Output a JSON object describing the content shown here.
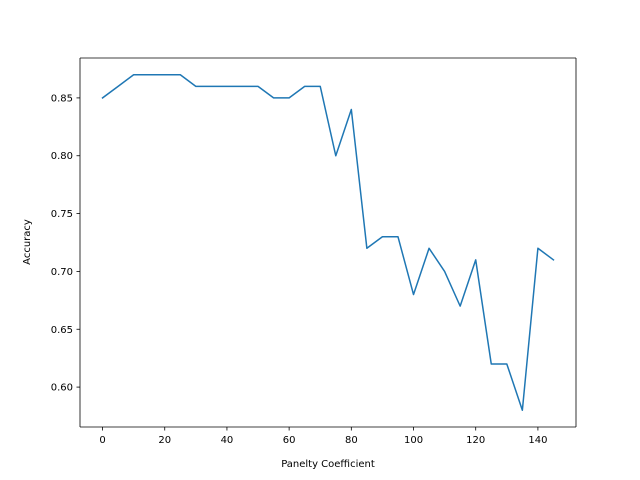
{
  "chart_data": {
    "type": "line",
    "title": "",
    "xlabel": "Panelty Coefficient",
    "ylabel": "Accuracy",
    "xlim": [
      -7.25,
      152.25
    ],
    "ylim": [
      0.5655,
      0.8845
    ],
    "xticks": [
      0,
      20,
      40,
      60,
      80,
      100,
      120,
      140
    ],
    "yticks": [
      0.6,
      0.65,
      0.7,
      0.75,
      0.8,
      0.85
    ],
    "xtick_labels": [
      "0",
      "20",
      "40",
      "60",
      "80",
      "100",
      "120",
      "140"
    ],
    "ytick_labels": [
      "0.60",
      "0.65",
      "0.70",
      "0.75",
      "0.80",
      "0.85"
    ],
    "grid": false,
    "series": [
      {
        "color": "#1f77b4",
        "x": [
          0,
          5,
          10,
          15,
          20,
          25,
          30,
          35,
          40,
          45,
          50,
          55,
          60,
          65,
          70,
          75,
          80,
          85,
          90,
          95,
          100,
          105,
          110,
          115,
          120,
          125,
          130,
          135,
          140,
          145
        ],
        "values": [
          0.85,
          0.86,
          0.87,
          0.87,
          0.87,
          0.87,
          0.86,
          0.86,
          0.86,
          0.86,
          0.86,
          0.85,
          0.85,
          0.86,
          0.86,
          0.8,
          0.84,
          0.72,
          0.73,
          0.73,
          0.68,
          0.72,
          0.7,
          0.67,
          0.71,
          0.62,
          0.62,
          0.58,
          0.72,
          0.71
        ]
      }
    ]
  }
}
